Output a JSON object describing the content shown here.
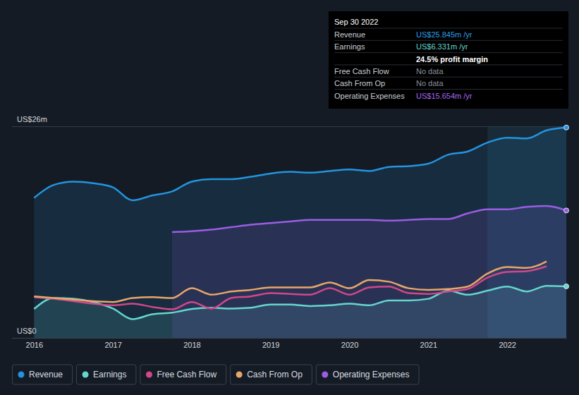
{
  "chart_data": {
    "type": "line",
    "x": [
      2016,
      2016.25,
      2016.5,
      2016.75,
      2017,
      2017.25,
      2017.5,
      2017.75,
      2018,
      2018.25,
      2018.5,
      2018.75,
      2019,
      2019.25,
      2019.5,
      2019.75,
      2020,
      2020.25,
      2020.5,
      2020.75,
      2021,
      2021.25,
      2021.5,
      2021.75,
      2022,
      2022.25,
      2022.5,
      2022.75
    ],
    "xlim": [
      2015.72,
      2022.75
    ],
    "xticks": [
      2016,
      2017,
      2018,
      2019,
      2020,
      2021,
      2022
    ],
    "ylim": [
      0,
      26
    ],
    "yticks": [
      {
        "value": 0,
        "label": "US$0"
      },
      {
        "value": 26,
        "label": "US$26m"
      }
    ],
    "grid": true,
    "legend": "bottom-left",
    "series": [
      {
        "name": "Revenue",
        "color": "#2394df",
        "type": "area",
        "values": [
          17.2,
          18.8,
          19.2,
          19.0,
          18.5,
          16.9,
          17.5,
          18.0,
          19.2,
          19.5,
          19.5,
          19.8,
          20.2,
          20.4,
          20.3,
          20.5,
          20.7,
          20.5,
          21.0,
          21.1,
          21.4,
          22.5,
          22.9,
          24.0,
          24.6,
          24.5,
          25.5,
          25.845
        ]
      },
      {
        "name": "Earnings",
        "color": "#65d6cd",
        "type": "area",
        "values": [
          3.55,
          4.9,
          4.8,
          4.4,
          3.6,
          2.3,
          2.9,
          3.1,
          3.55,
          3.7,
          3.6,
          3.7,
          4.1,
          4.1,
          3.9,
          4.0,
          4.2,
          4.0,
          4.6,
          4.6,
          4.8,
          5.8,
          5.3,
          5.8,
          6.3,
          5.7,
          6.4,
          6.331
        ]
      },
      {
        "name": "Free Cash Flow",
        "color": "#d1478a",
        "type": "line",
        "values": [
          5.0,
          4.8,
          4.5,
          4.2,
          4.0,
          4.2,
          3.8,
          3.5,
          4.4,
          3.6,
          4.9,
          5.1,
          5.5,
          5.4,
          5.3,
          6.1,
          5.3,
          6.2,
          6.3,
          5.5,
          5.4,
          5.7,
          6.0,
          7.4,
          8.1,
          8.2,
          8.8,
          null
        ]
      },
      {
        "name": "Cash From Op",
        "color": "#e9a66a",
        "type": "line",
        "values": [
          5.1,
          4.9,
          4.7,
          4.5,
          4.4,
          4.9,
          5.0,
          4.9,
          6.1,
          5.3,
          5.7,
          5.9,
          6.2,
          6.2,
          6.2,
          6.8,
          6.1,
          7.1,
          6.9,
          6.1,
          5.9,
          6.0,
          6.3,
          7.9,
          8.7,
          8.6,
          9.4,
          null
        ]
      },
      {
        "name": "Operating Expenses",
        "color": "#9b5de5",
        "type": "area",
        "values": [
          null,
          null,
          null,
          null,
          null,
          null,
          null,
          13.0,
          13.1,
          13.3,
          13.6,
          13.9,
          14.1,
          14.3,
          14.5,
          14.5,
          14.5,
          14.5,
          14.4,
          14.5,
          14.6,
          14.6,
          15.3,
          15.8,
          15.8,
          16.1,
          16.2,
          15.654
        ]
      }
    ],
    "annotations": {
      "title": "Sep 30 2022",
      "rows": [
        {
          "label": "Revenue",
          "value": "US$25.845m /yr",
          "color": "#2e9fe8"
        },
        {
          "label": "Earnings",
          "value": "US$6.331m /yr",
          "color": "#65d6cd"
        },
        {
          "value": "24.5% profit margin",
          "color": "#ffffff"
        },
        {
          "label": "Free Cash Flow",
          "value": "No data",
          "color": "#8a9099"
        },
        {
          "label": "Cash From Op",
          "value": "No data",
          "color": "#8a9099"
        },
        {
          "label": "Operating Expenses",
          "value": "US$15.654m /yr",
          "color": "#a766ee"
        }
      ]
    }
  }
}
